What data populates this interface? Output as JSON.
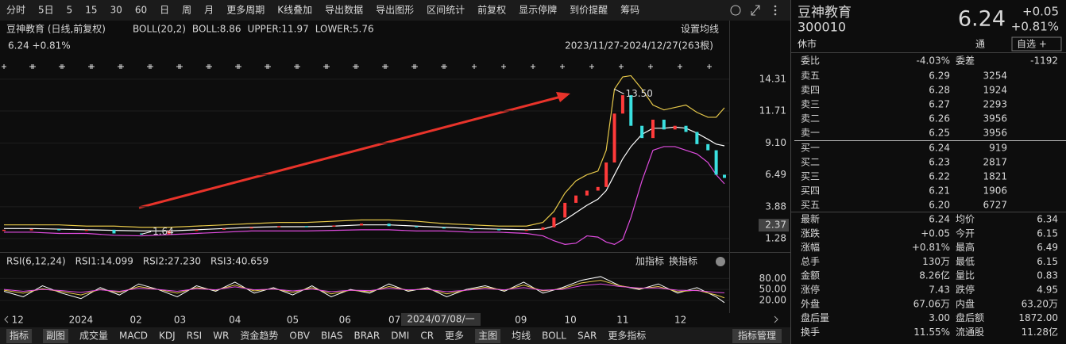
{
  "toolbar": {
    "items": [
      "分时",
      "5日",
      "5",
      "15",
      "30",
      "60",
      "日",
      "周",
      "月",
      "更多周期",
      "K线叠加",
      "导出数据",
      "导出图形",
      "区间统计",
      "前复权",
      "显示停牌",
      "到价提醒",
      "筹码"
    ],
    "active": [
      6,
      14
    ]
  },
  "chart": {
    "legend": [
      {
        "text": "豆神教育 (日线,前复权)",
        "color": "#9a9a9a"
      },
      {
        "text": "BOLL(20,2)",
        "color": "#9a9a9a"
      },
      {
        "text": "BOLL:8.86",
        "color": "#ffffff"
      },
      {
        "text": "UPPER:11.97",
        "color": "#e6c84a"
      },
      {
        "text": "LOWER:5.76",
        "color": "#e04ce0"
      }
    ],
    "setting": "设置均线",
    "last": "6.24 +0.81%",
    "range": "2023/11/27-2024/12/27(263根)",
    "ylim": [
      0.37,
      14.63
    ],
    "yticks": [
      14.31,
      11.71,
      {
        "value": 9.1,
        "label": "9.10"
      },
      6.49,
      3.88,
      1.28
    ],
    "grid": true,
    "marker": 2.37,
    "xlim": [
      0,
      262
    ],
    "xticks": [
      {
        "value": 5,
        "label": "12"
      },
      {
        "value": 28,
        "label": "2024"
      },
      {
        "value": 48,
        "label": "02"
      },
      {
        "value": 64,
        "label": "03"
      },
      {
        "value": 84,
        "label": "04"
      },
      {
        "value": 105,
        "label": "05"
      },
      {
        "value": 124,
        "label": "06"
      },
      {
        "value": 142,
        "label": "07"
      },
      {
        "value": 188,
        "label": "09"
      },
      {
        "value": 206,
        "label": "10"
      },
      {
        "value": 225,
        "label": "11"
      },
      {
        "value": 246,
        "label": "12"
      }
    ],
    "cursor_date": "2024/07/08/一",
    "annotations": [
      {
        "x": 222,
        "value": 13.5,
        "label": "13.50"
      },
      {
        "x": 50,
        "value": 1.64,
        "label": "1.64"
      }
    ],
    "price": {
      "x": [
        0,
        10,
        20,
        30,
        40,
        50,
        60,
        70,
        80,
        90,
        100,
        110,
        120,
        130,
        140,
        150,
        160,
        170,
        180,
        190,
        196,
        200,
        204,
        208,
        212,
        216,
        219,
        222,
        225,
        228,
        232,
        236,
        240,
        244,
        248,
        252,
        256,
        259,
        262
      ],
      "close": [
        2.0,
        2.05,
        1.95,
        2.0,
        1.7,
        1.64,
        1.9,
        2.0,
        2.1,
        2.2,
        2.3,
        2.25,
        2.35,
        2.5,
        2.3,
        2.2,
        2.1,
        2.05,
        2.0,
        2.0,
        2.2,
        3.0,
        4.2,
        4.8,
        5.2,
        5.5,
        7.5,
        11.5,
        13.0,
        10.5,
        9.5,
        11.0,
        10.2,
        10.5,
        10.0,
        9.0,
        8.5,
        6.5,
        6.24
      ],
      "upper": [
        2.4,
        2.4,
        2.4,
        2.3,
        2.3,
        2.2,
        2.2,
        2.3,
        2.4,
        2.5,
        2.6,
        2.6,
        2.7,
        2.8,
        2.8,
        2.7,
        2.5,
        2.4,
        2.3,
        2.3,
        2.6,
        3.5,
        5.0,
        6.0,
        6.5,
        6.8,
        8.5,
        13.5,
        14.5,
        14.6,
        13.5,
        12.2,
        11.8,
        12.0,
        12.2,
        11.6,
        11.2,
        11.2,
        11.97
      ],
      "mid": [
        2.1,
        2.1,
        2.05,
        2.0,
        1.95,
        1.9,
        1.9,
        2.0,
        2.1,
        2.2,
        2.25,
        2.25,
        2.3,
        2.4,
        2.4,
        2.3,
        2.2,
        2.1,
        2.05,
        2.0,
        2.05,
        2.3,
        2.8,
        3.4,
        4.0,
        4.5,
        5.2,
        6.5,
        7.8,
        8.8,
        9.8,
        10.3,
        10.3,
        10.4,
        10.3,
        9.9,
        9.4,
        9.0,
        8.86
      ],
      "lower": [
        1.8,
        1.8,
        1.7,
        1.7,
        1.55,
        1.5,
        1.6,
        1.7,
        1.8,
        1.9,
        1.9,
        1.9,
        1.95,
        2.0,
        2.0,
        1.9,
        1.9,
        1.8,
        1.8,
        1.7,
        1.5,
        1.1,
        0.8,
        0.9,
        1.5,
        1.4,
        1.0,
        0.8,
        1.2,
        3.0,
        6.0,
        8.5,
        8.8,
        8.8,
        8.5,
        8.2,
        7.5,
        6.5,
        5.76
      ]
    }
  },
  "rsi": {
    "legend": [
      {
        "text": "RSI(6,12,24)",
        "color": "#9a9a9a"
      },
      {
        "text": "RSI1:14.099",
        "color": "#ffffff"
      },
      {
        "text": "RSI2:27.230",
        "color": "#e6c84a"
      },
      {
        "text": "RSI3:40.659",
        "color": "#e04ce0"
      }
    ],
    "buttons": [
      "加指标",
      "换指标"
    ],
    "ylim": [
      -10,
      100
    ],
    "yticks": [
      {
        "value": 80,
        "label": "80.00"
      },
      {
        "value": 50,
        "label": "50.00"
      },
      {
        "value": 20,
        "label": "20.00"
      }
    ],
    "x": [
      0,
      7,
      14,
      21,
      28,
      35,
      42,
      49,
      56,
      63,
      70,
      77,
      84,
      91,
      98,
      105,
      112,
      119,
      126,
      133,
      140,
      147,
      154,
      161,
      168,
      175,
      182,
      189,
      196,
      203,
      210,
      217,
      224,
      231,
      238,
      245,
      252,
      259,
      262
    ],
    "series": [
      {
        "name": "RSI1",
        "color": "#ffffff",
        "values": [
          45,
          30,
          60,
          40,
          25,
          55,
          35,
          65,
          50,
          30,
          60,
          45,
          70,
          40,
          55,
          35,
          60,
          30,
          50,
          40,
          65,
          45,
          55,
          30,
          50,
          60,
          45,
          70,
          40,
          55,
          75,
          85,
          60,
          50,
          65,
          40,
          55,
          30,
          14.099
        ]
      },
      {
        "name": "RSI2",
        "color": "#e6c84a",
        "values": [
          48,
          40,
          52,
          44,
          35,
          50,
          42,
          58,
          50,
          40,
          55,
          48,
          62,
          46,
          52,
          42,
          55,
          38,
          48,
          44,
          58,
          48,
          52,
          38,
          48,
          56,
          48,
          62,
          46,
          52,
          68,
          75,
          60,
          52,
          58,
          44,
          48,
          35,
          27.23
        ]
      },
      {
        "name": "RSI3",
        "color": "#e04ce0",
        "values": [
          50,
          45,
          50,
          47,
          42,
          49,
          45,
          53,
          50,
          45,
          52,
          49,
          57,
          49,
          51,
          46,
          51,
          44,
          48,
          47,
          53,
          49,
          50,
          44,
          48,
          52,
          49,
          55,
          48,
          50,
          60,
          65,
          58,
          54,
          54,
          48,
          47,
          42,
          40.659
        ]
      }
    ]
  },
  "tabs": {
    "items": [
      "指标",
      "副图",
      "成交量",
      "MACD",
      "KDJ",
      "RSI",
      "WR",
      "资金趋势",
      "OBV",
      "BIAS",
      "BRAR",
      "DMI",
      "CR",
      "更多",
      "主图",
      "均线",
      "BOLL",
      "SAR",
      "更多指标"
    ],
    "active": [
      5,
      16
    ],
    "manage": "指标管理"
  },
  "quote": {
    "name": "豆神教育",
    "code": "300010",
    "status": "休市",
    "price": "6.24",
    "change": "+0.05",
    "pct": "+0.81%",
    "tong": "通",
    "watch": "自选 +",
    "ratio": {
      "label": "委比",
      "value": "-4.03%",
      "label2": "委差",
      "value2": "-1192"
    },
    "asks": [
      {
        "label": "卖五",
        "price": "6.29",
        "volume": "3254"
      },
      {
        "label": "卖四",
        "price": "6.28",
        "volume": "1924"
      },
      {
        "label": "卖三",
        "price": "6.27",
        "volume": "2293"
      },
      {
        "label": "卖二",
        "price": "6.26",
        "volume": "3956"
      },
      {
        "label": "卖一",
        "price": "6.25",
        "volume": "3956"
      }
    ],
    "bids": [
      {
        "label": "买一",
        "price": "6.24",
        "volume": "919"
      },
      {
        "label": "买二",
        "price": "6.23",
        "volume": "2817"
      },
      {
        "label": "买三",
        "price": "6.22",
        "volume": "1821"
      },
      {
        "label": "买四",
        "price": "6.21",
        "volume": "1906"
      },
      {
        "label": "买五",
        "price": "6.20",
        "volume": "6727"
      }
    ],
    "stats": [
      [
        {
          "label": "最新",
          "value": "6.24",
          "color": "#ff4040"
        },
        {
          "label": "均价",
          "value": "6.34",
          "color": "#ff4040"
        }
      ],
      [
        {
          "label": "涨跌",
          "value": "+0.05",
          "color": "#ff4040"
        },
        {
          "label": "今开",
          "value": "6.15",
          "color": "#2ed15a"
        }
      ],
      [
        {
          "label": "涨幅",
          "value": "+0.81%",
          "color": "#ff4040"
        },
        {
          "label": "最高",
          "value": "6.49",
          "color": "#ff4040"
        }
      ],
      [
        {
          "label": "总手",
          "value": "130万",
          "color": "#e0e0e0"
        },
        {
          "label": "最低",
          "value": "6.15",
          "color": "#2ed15a"
        }
      ],
      [
        {
          "label": "金额",
          "value": "8.26亿",
          "color": "#4ad6e0"
        },
        {
          "label": "量比",
          "value": "0.83",
          "color": "#e0e0e0"
        }
      ],
      [
        {
          "label": "涨停",
          "value": "7.43",
          "color": "#ff4040"
        },
        {
          "label": "跌停",
          "value": "4.95",
          "color": "#2ed15a"
        }
      ],
      [
        {
          "label": "外盘",
          "value": "67.06万",
          "color": "#ff4040"
        },
        {
          "label": "内盘",
          "value": "63.20万",
          "color": "#2ed15a"
        }
      ],
      [
        {
          "label": "盘后量",
          "value": "3.00",
          "color": "#e0e0e0"
        },
        {
          "label": "盘后额",
          "value": "1872.00",
          "color": "#4ad6e0"
        }
      ],
      [
        {
          "label": "换手",
          "value": "11.55%",
          "color": "#e0e0e0"
        },
        {
          "label": "流通股",
          "value": "11.28亿",
          "color": "#e0e0e0"
        }
      ]
    ]
  }
}
